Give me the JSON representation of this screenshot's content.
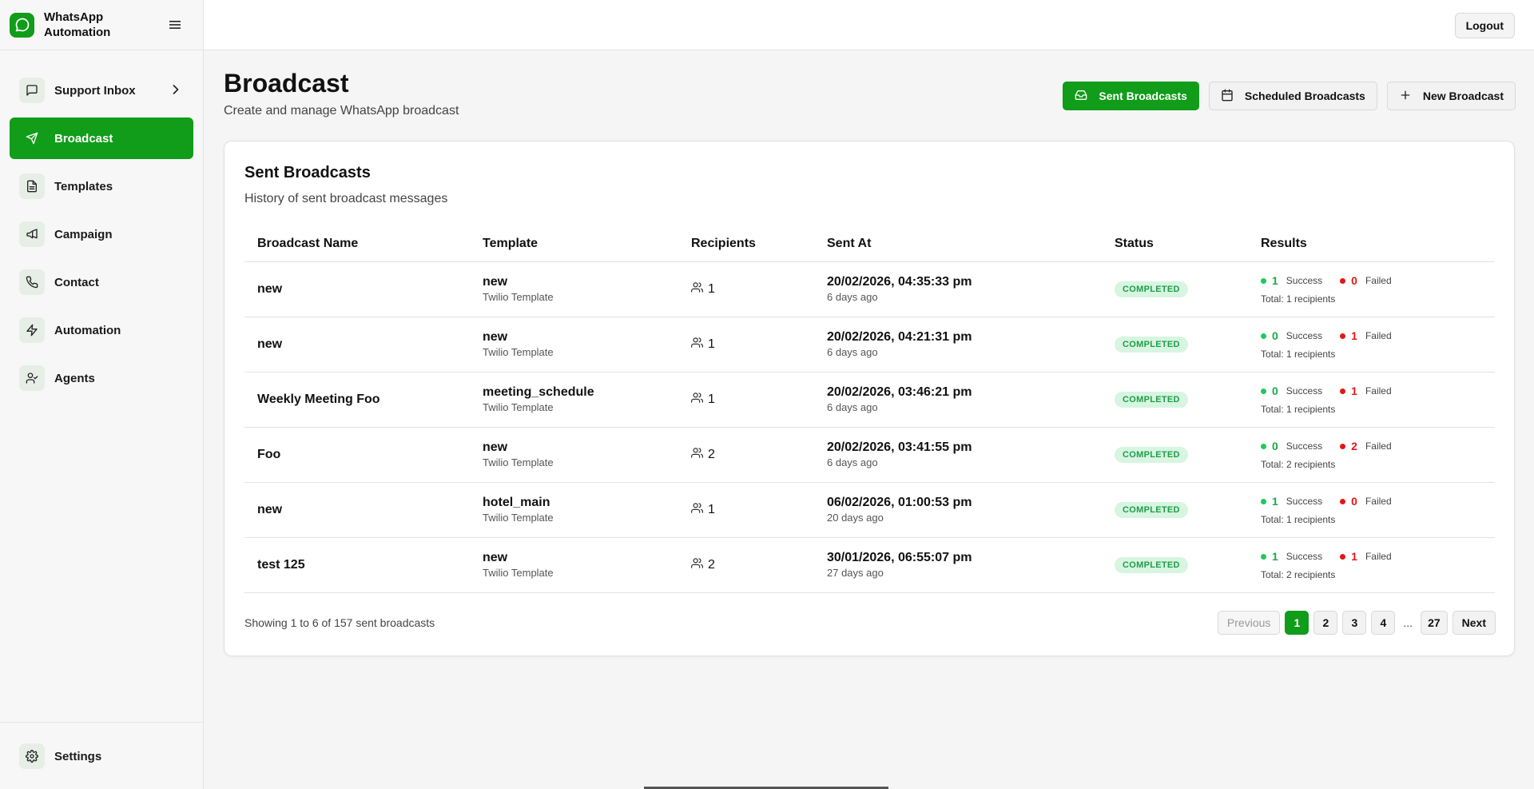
{
  "app": {
    "title": "WhatsApp Automation"
  },
  "sidebar": {
    "items": [
      {
        "label": "Support Inbox",
        "icon": "message-square-icon"
      },
      {
        "label": "Broadcast",
        "icon": "send-icon"
      },
      {
        "label": "Templates",
        "icon": "file-text-icon"
      },
      {
        "label": "Campaign",
        "icon": "megaphone-icon"
      },
      {
        "label": "Contact",
        "icon": "phone-icon"
      },
      {
        "label": "Automation",
        "icon": "zap-icon"
      },
      {
        "label": "Agents",
        "icon": "user-check-icon"
      }
    ],
    "settings_label": "Settings"
  },
  "topbar": {
    "logout_label": "Logout"
  },
  "page": {
    "title": "Broadcast",
    "subtitle": "Create and manage WhatsApp broadcast"
  },
  "actions": {
    "sent": "Sent Broadcasts",
    "scheduled": "Scheduled Broadcasts",
    "new": "New Broadcast"
  },
  "card": {
    "title": "Sent Broadcasts",
    "subtitle": "History of sent broadcast messages"
  },
  "table": {
    "headers": [
      "Broadcast Name",
      "Template",
      "Recipients",
      "Sent At",
      "Status",
      "Results"
    ],
    "rows": [
      {
        "name": "new",
        "template": "new",
        "template_type": "Twilio Template",
        "recipients": "1",
        "sent_at": "20/02/2026, 04:35:33 pm",
        "ago": "6 days ago",
        "status": "COMPLETED",
        "success": "1",
        "failed": "0",
        "success_label": "Success",
        "failed_label": "Failed",
        "total": "Total: 1 recipients"
      },
      {
        "name": "new",
        "template": "new",
        "template_type": "Twilio Template",
        "recipients": "1",
        "sent_at": "20/02/2026, 04:21:31 pm",
        "ago": "6 days ago",
        "status": "COMPLETED",
        "success": "0",
        "failed": "1",
        "success_label": "Success",
        "failed_label": "Failed",
        "total": "Total: 1 recipients"
      },
      {
        "name": "Weekly Meeting Foo",
        "template": "meeting_schedule",
        "template_type": "Twilio Template",
        "recipients": "1",
        "sent_at": "20/02/2026, 03:46:21 pm",
        "ago": "6 days ago",
        "status": "COMPLETED",
        "success": "0",
        "failed": "1",
        "success_label": "Success",
        "failed_label": "Failed",
        "total": "Total: 1 recipients"
      },
      {
        "name": "Foo",
        "template": "new",
        "template_type": "Twilio Template",
        "recipients": "2",
        "sent_at": "20/02/2026, 03:41:55 pm",
        "ago": "6 days ago",
        "status": "COMPLETED",
        "success": "0",
        "failed": "2",
        "success_label": "Success",
        "failed_label": "Failed",
        "total": "Total: 2 recipients"
      },
      {
        "name": "new",
        "template": "hotel_main",
        "template_type": "Twilio Template",
        "recipients": "1",
        "sent_at": "06/02/2026, 01:00:53 pm",
        "ago": "20 days ago",
        "status": "COMPLETED",
        "success": "1",
        "failed": "0",
        "success_label": "Success",
        "failed_label": "Failed",
        "total": "Total: 1 recipients"
      },
      {
        "name": "test 125",
        "template": "new",
        "template_type": "Twilio Template",
        "recipients": "2",
        "sent_at": "30/01/2026, 06:55:07 pm",
        "ago": "27 days ago",
        "status": "COMPLETED",
        "success": "1",
        "failed": "1",
        "success_label": "Success",
        "failed_label": "Failed",
        "total": "Total: 2 recipients"
      }
    ]
  },
  "pagination": {
    "showing": "Showing 1 to 6 of 157 sent broadcasts",
    "previous": "Previous",
    "pages": [
      "1",
      "2",
      "3",
      "4"
    ],
    "ellipsis": "...",
    "last": "27",
    "next": "Next",
    "current": "1"
  },
  "colors": {
    "brand": "#119c1a",
    "success": "#1ec95a",
    "failed": "#e51616",
    "badge_bg": "#d7f5e0"
  }
}
